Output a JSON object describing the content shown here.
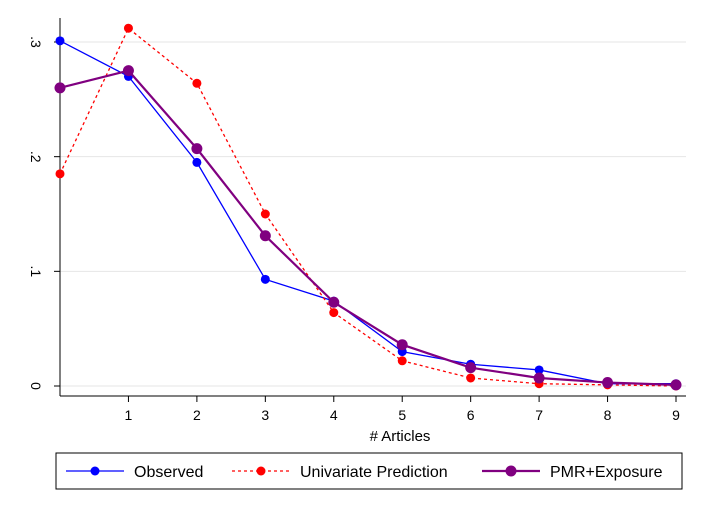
{
  "chart_data": {
    "type": "line",
    "title": "",
    "xlabel": "# Articles",
    "ylabel": "",
    "x": [
      0,
      1,
      2,
      3,
      4,
      5,
      6,
      7,
      8,
      9
    ],
    "x_tick_labels": [
      "1",
      "2",
      "3",
      "4",
      "5",
      "6",
      "7",
      "8",
      "9"
    ],
    "y_tick_labels": [
      "0",
      ".1",
      ".2",
      ".3"
    ],
    "xlim": [
      0,
      9
    ],
    "ylim": [
      0,
      0.3
    ],
    "grid": true,
    "legend_position": "bottom",
    "series": [
      {
        "name": "Observed",
        "color": "#0000ff",
        "style": "solid",
        "values": [
          0.301,
          0.27,
          0.195,
          0.093,
          0.074,
          0.03,
          0.019,
          0.014,
          0.002,
          0.002
        ]
      },
      {
        "name": "Univariate Prediction",
        "color": "#ff0000",
        "style": "dotted",
        "values": [
          0.185,
          0.312,
          0.264,
          0.15,
          0.064,
          0.022,
          0.007,
          0.002,
          0.001,
          0.0
        ]
      },
      {
        "name": "PMR+Exposure",
        "color": "#800080",
        "style": "solid",
        "values": [
          0.26,
          0.275,
          0.207,
          0.131,
          0.073,
          0.036,
          0.016,
          0.007,
          0.003,
          0.001
        ]
      }
    ]
  }
}
